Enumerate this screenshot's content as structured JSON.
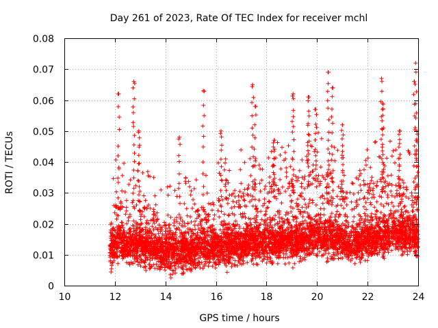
{
  "chart_data": {
    "type": "scatter",
    "title": "Day 261 of 2023, Rate Of TEC Index for receiver mchl",
    "xlabel": "GPS time / hours",
    "ylabel": "ROTI / TECUs",
    "xlim": [
      10,
      24
    ],
    "ylim": [
      0,
      0.08
    ],
    "x_ticks": [
      "10",
      "12",
      "14",
      "16",
      "18",
      "20",
      "22",
      "24"
    ],
    "y_ticks": [
      "0",
      "0.01",
      "0.02",
      "0.03",
      "0.04",
      "0.05",
      "0.06",
      "0.07",
      "0.08"
    ],
    "grid": true,
    "marker": "+",
    "color": "#ff0000",
    "data_start_hour": 11.8,
    "data_end_hour": 24.0,
    "series": [
      {
        "name": "ROTI",
        "note": "dense cloud of points, approximate envelope",
        "x": [
          11.8,
          12.0,
          12.2,
          12.5,
          12.8,
          13.0,
          13.5,
          14.0,
          14.5,
          15.0,
          15.5,
          16.0,
          16.5,
          17.0,
          17.5,
          18.0,
          18.5,
          19.0,
          19.5,
          20.0,
          20.5,
          21.0,
          21.5,
          22.0,
          22.5,
          23.0,
          23.5,
          24.0
        ],
        "median": [
          0.011,
          0.013,
          0.014,
          0.013,
          0.014,
          0.013,
          0.012,
          0.01,
          0.011,
          0.011,
          0.012,
          0.012,
          0.013,
          0.013,
          0.014,
          0.014,
          0.014,
          0.014,
          0.015,
          0.016,
          0.016,
          0.014,
          0.014,
          0.015,
          0.016,
          0.017,
          0.017,
          0.015
        ],
        "upper": [
          0.018,
          0.03,
          0.03,
          0.028,
          0.03,
          0.028,
          0.026,
          0.021,
          0.022,
          0.024,
          0.026,
          0.028,
          0.03,
          0.032,
          0.033,
          0.034,
          0.035,
          0.036,
          0.036,
          0.038,
          0.037,
          0.032,
          0.03,
          0.034,
          0.036,
          0.036,
          0.034,
          0.03
        ],
        "peaks": [
          {
            "x": 12.15,
            "y": 0.062
          },
          {
            "x": 12.75,
            "y": 0.066
          },
          {
            "x": 12.95,
            "y": 0.05
          },
          {
            "x": 14.55,
            "y": 0.048
          },
          {
            "x": 15.5,
            "y": 0.063
          },
          {
            "x": 16.2,
            "y": 0.05
          },
          {
            "x": 17.45,
            "y": 0.065
          },
          {
            "x": 17.55,
            "y": 0.058
          },
          {
            "x": 18.3,
            "y": 0.047
          },
          {
            "x": 19.05,
            "y": 0.062
          },
          {
            "x": 19.65,
            "y": 0.061
          },
          {
            "x": 19.95,
            "y": 0.057
          },
          {
            "x": 20.45,
            "y": 0.069
          },
          {
            "x": 20.6,
            "y": 0.064
          },
          {
            "x": 21.0,
            "y": 0.052
          },
          {
            "x": 22.55,
            "y": 0.067
          },
          {
            "x": 22.6,
            "y": 0.059
          },
          {
            "x": 23.25,
            "y": 0.05
          },
          {
            "x": 23.9,
            "y": 0.072
          },
          {
            "x": 23.85,
            "y": 0.066
          },
          {
            "x": 23.95,
            "y": 0.05
          }
        ]
      }
    ]
  }
}
